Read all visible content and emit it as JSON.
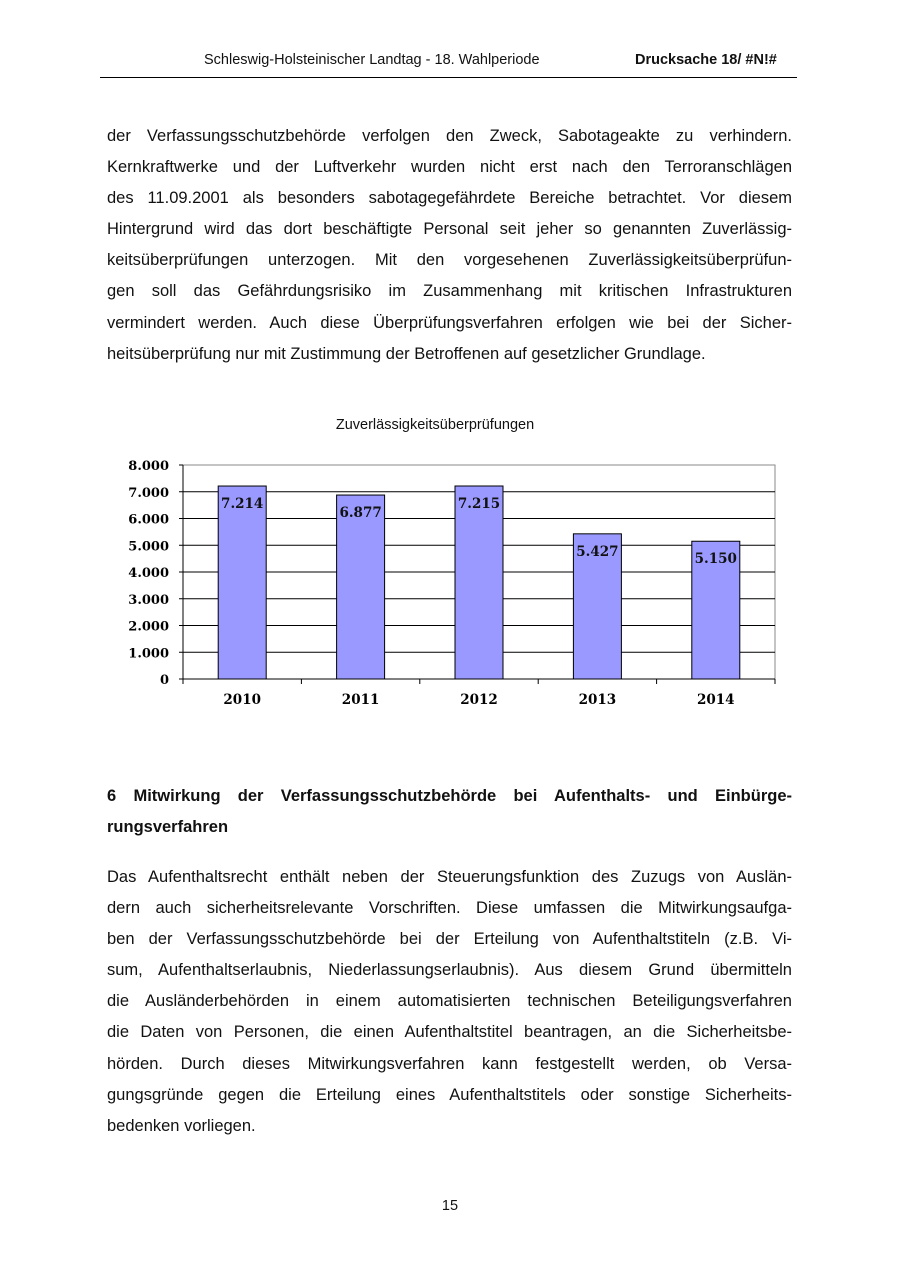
{
  "header": {
    "title": "Schleswig-Holsteinischer Landtag - 18. Wahlperiode",
    "doc_number": "Drucksache 18/ #N!#"
  },
  "paragraph1": [
    "der Verfassungsschutzbehörde verfolgen den Zweck, Sabotageakte zu verhindern.",
    "Kernkraftwerke und der Luftverkehr wurden nicht erst nach den Terroranschlägen",
    "des 11.09.2001 als besonders sabotagegefährdete Bereiche betrachtet. Vor diesem",
    "Hintergrund wird das dort beschäftigte Personal seit jeher so genannten Zuverlässig-",
    "keitsüberprüfungen unterzogen. Mit den vorgesehenen Zuverlässigkeitsüberprüfun-",
    "gen soll das Gefährdungsrisiko im Zusammenhang mit kritischen Infrastrukturen",
    "vermindert werden. Auch diese Überprüfungsverfahren erfolgen wie bei der Sicher-",
    "heitsüberprüfung  nur mit Zustimmung der Betroffenen auf gesetzlicher Grundlage."
  ],
  "section_heading": [
    "6 Mitwirkung der Verfassungsschutzbehörde bei Aufenthalts- und Einbürge-",
    "rungsverfahren"
  ],
  "paragraph2": [
    "Das Aufenthaltsrecht enthält neben der Steuerungsfunktion des Zuzugs von Auslän-",
    "dern auch sicherheitsrelevante Vorschriften. Diese umfassen die Mitwirkungsaufga-",
    "ben der Verfassungsschutzbehörde bei der Erteilung von Aufenthaltstiteln (z.B. Vi-",
    "sum, Aufenthaltserlaubnis, Niederlassungserlaubnis). Aus diesem Grund übermitteln",
    "die Ausländerbehörden in einem automatisierten technischen Beteiligungsverfahren",
    "die Daten von Personen, die einen Aufenthaltstitel beantragen, an die Sicherheitsbe-",
    "hörden. Durch dieses Mitwirkungsverfahren kann festgestellt werden, ob Versa-",
    "gungsgründe gegen die Erteilung eines Aufenthaltstitels oder sonstige Sicherheits-",
    "bedenken vorliegen."
  ],
  "page_number": "15",
  "chart_data": {
    "type": "bar",
    "title": "Zuverlässigkeitsüberprüfungen",
    "categories": [
      "2010",
      "2011",
      "2012",
      "2013",
      "2014"
    ],
    "values": [
      7214,
      6877,
      7215,
      5427,
      5150
    ],
    "data_labels": [
      "7.214",
      "6.877",
      "7.215",
      "5.427",
      "5.150"
    ],
    "ylim": [
      0,
      8000
    ],
    "yticks": [
      "0",
      "1.000",
      "2.000",
      "3.000",
      "4.000",
      "5.000",
      "6.000",
      "7.000",
      "8.000"
    ],
    "grid": true,
    "bar_color": "#9999ff"
  }
}
